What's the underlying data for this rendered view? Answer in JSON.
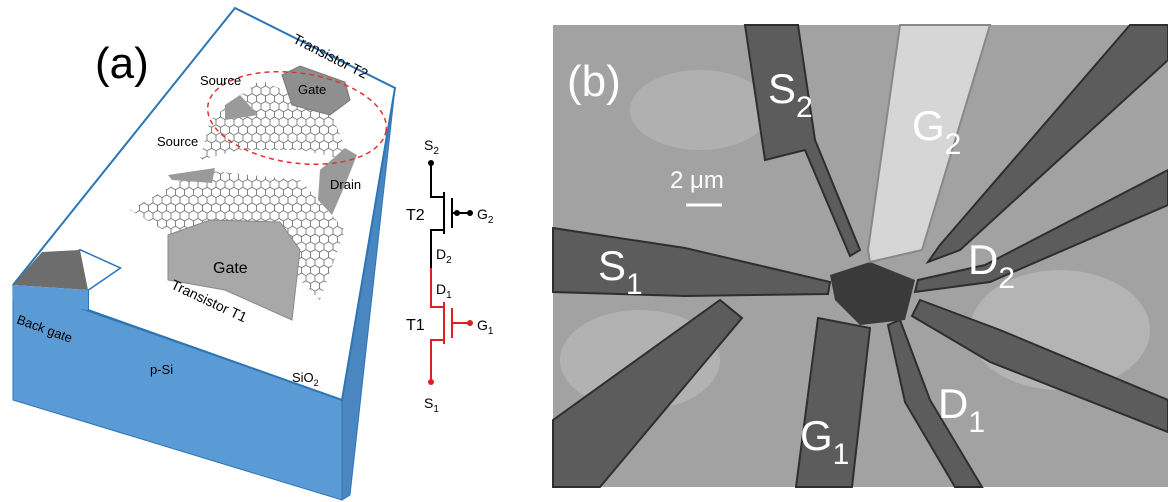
{
  "panel_a": {
    "label": "(a)",
    "transistor_t2": "Transistor T2",
    "transistor_t1": "Transistor T1",
    "source_top": "Source",
    "gate_top": "Gate",
    "source_left": "Source",
    "drain": "Drain",
    "gate_bottom": "Gate",
    "back_gate": "Back gate",
    "p_si": "p-Si",
    "sio2": {
      "main": "SiO",
      "sub": "2"
    }
  },
  "circuit": {
    "s2": {
      "main": "S",
      "sub": "2"
    },
    "t2": "T2",
    "g2": {
      "main": "G",
      "sub": "2"
    },
    "d2": {
      "main": "D",
      "sub": "2"
    },
    "d1": {
      "main": "D",
      "sub": "1"
    },
    "t1": "T1",
    "g1": {
      "main": "G",
      "sub": "1"
    },
    "s1": {
      "main": "S",
      "sub": "1"
    }
  },
  "panel_b": {
    "label": "(b)",
    "scale": "2 μm",
    "s2": {
      "main": "S",
      "sub": "2"
    },
    "g2": {
      "main": "G",
      "sub": "2"
    },
    "s1": {
      "main": "S",
      "sub": "1"
    },
    "d2": {
      "main": "D",
      "sub": "2"
    },
    "d1": {
      "main": "D",
      "sub": "1"
    },
    "g1": {
      "main": "G",
      "sub": "1"
    }
  }
}
